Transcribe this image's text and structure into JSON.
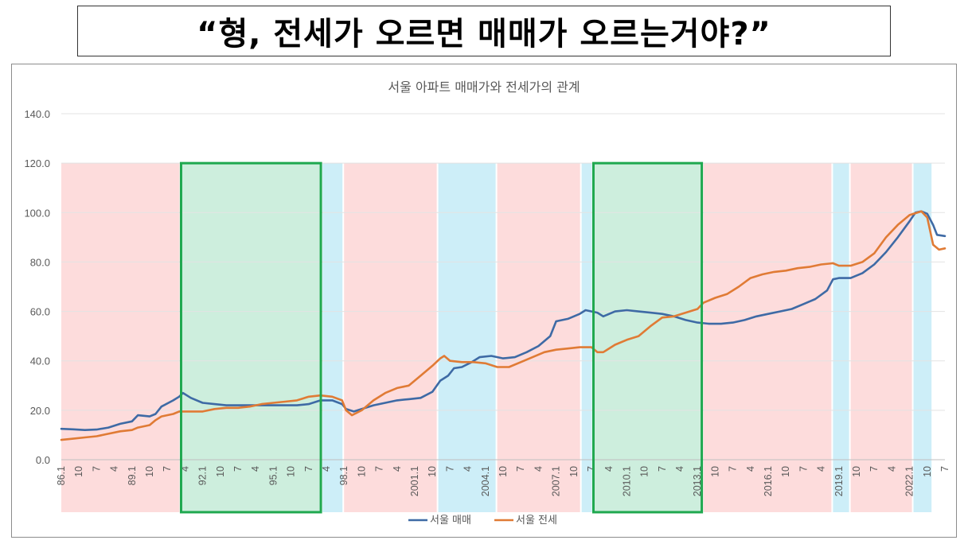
{
  "headline": "“형, 전세가 오르면 매매가 오르는거야?”",
  "chart_data": {
    "type": "line",
    "title": "서울 아파트 매매가와 전세가의 관계",
    "xlabel": "",
    "ylabel": "",
    "ylim": [
      0,
      140
    ],
    "yticks": [
      "0.0",
      "20.0",
      "40.0",
      "60.0",
      "80.0",
      "100.0",
      "120.0",
      "140.0"
    ],
    "x_start": "1986.1",
    "x_end": "2023.7",
    "x_tick_labels": [
      "86.1",
      "10",
      "7",
      "4",
      "89.1",
      "10",
      "7",
      "4",
      "92.1",
      "10",
      "7",
      "4",
      "95.1",
      "10",
      "7",
      "4",
      "98.1",
      "10",
      "7",
      "4",
      "2001.1",
      "10",
      "7",
      "4",
      "2004.1",
      "10",
      "7",
      "4",
      "2007.1",
      "10",
      "7",
      "4",
      "2010.1",
      "10",
      "7",
      "4",
      "2013.1",
      "10",
      "7",
      "4",
      "2016.1",
      "10",
      "7",
      "4",
      "2019.1",
      "10",
      "7",
      "4",
      "2022.1",
      "10",
      "7"
    ],
    "legend_position": "bottom",
    "colors": {
      "sale": "#3e6aa5",
      "jeonse": "#e07b35",
      "pink": "#fddcdc",
      "blue": "#cdeef8",
      "green_fill": "#cdeedd",
      "green_border": "#1fa84f"
    },
    "regions": [
      {
        "from": "1986.1",
        "to": "1991.2",
        "color": "pink"
      },
      {
        "from": "1991.2",
        "to": "1997.2",
        "color": "green"
      },
      {
        "from": "1997.2",
        "to": "1998.1",
        "color": "blue"
      },
      {
        "from": "1998.1",
        "to": "2002.1",
        "color": "pink"
      },
      {
        "from": "2002.1",
        "to": "2004.7",
        "color": "blue"
      },
      {
        "from": "2004.7",
        "to": "2008.2",
        "color": "pink"
      },
      {
        "from": "2008.2",
        "to": "2008.8",
        "color": "blue"
      },
      {
        "from": "2008.8",
        "to": "2013.4",
        "color": "green"
      },
      {
        "from": "2013.4",
        "to": "2018.10",
        "color": "pink"
      },
      {
        "from": "2018.10",
        "to": "2019.7",
        "color": "blue"
      },
      {
        "from": "2019.7",
        "to": "2022.3",
        "color": "pink"
      },
      {
        "from": "2022.3",
        "to": "2023.1",
        "color": "blue"
      }
    ],
    "series": [
      {
        "name": "서울 매매",
        "color": "#3e6aa5",
        "points": [
          [
            "1986.1",
            12.5
          ],
          [
            "1986.7",
            12.3
          ],
          [
            "1987.1",
            12.0
          ],
          [
            "1987.7",
            12.2
          ],
          [
            "1988.1",
            13.0
          ],
          [
            "1988.7",
            14.5
          ],
          [
            "1989.1",
            15.5
          ],
          [
            "1989.4",
            18.0
          ],
          [
            "1989.10",
            17.5
          ],
          [
            "1990.1",
            18.5
          ],
          [
            "1990.4",
            21.5
          ],
          [
            "1990.10",
            24.0
          ],
          [
            "1991.1",
            25.5
          ],
          [
            "1991.3",
            27.0
          ],
          [
            "1991.7",
            25.0
          ],
          [
            "1992.1",
            23.0
          ],
          [
            "1992.7",
            22.5
          ],
          [
            "1993.1",
            22.0
          ],
          [
            "1993.7",
            22.0
          ],
          [
            "1994.1",
            22.0
          ],
          [
            "1994.7",
            22.0
          ],
          [
            "1995.1",
            22.0
          ],
          [
            "1995.7",
            22.0
          ],
          [
            "1996.1",
            22.0
          ],
          [
            "1996.7",
            22.5
          ],
          [
            "1997.1",
            24.0
          ],
          [
            "1997.7",
            24.0
          ],
          [
            "1997.12",
            22.5
          ],
          [
            "1998.2",
            20.5
          ],
          [
            "1998.6",
            19.5
          ],
          [
            "1998.10",
            20.5
          ],
          [
            "1999.4",
            22.0
          ],
          [
            "1999.10",
            23.0
          ],
          [
            "2000.4",
            24.0
          ],
          [
            "2000.10",
            24.5
          ],
          [
            "2001.4",
            25.0
          ],
          [
            "2001.10",
            27.5
          ],
          [
            "2002.2",
            32.0
          ],
          [
            "2002.6",
            34.0
          ],
          [
            "2002.9",
            37.0
          ],
          [
            "2003.1",
            37.5
          ],
          [
            "2003.6",
            39.5
          ],
          [
            "2003.10",
            41.5
          ],
          [
            "2004.4",
            42.0
          ],
          [
            "2004.10",
            41.0
          ],
          [
            "2005.4",
            41.5
          ],
          [
            "2005.10",
            43.5
          ],
          [
            "2006.4",
            46.0
          ],
          [
            "2006.10",
            50.0
          ],
          [
            "2007.1",
            56.0
          ],
          [
            "2007.7",
            57.0
          ],
          [
            "2008.1",
            59.0
          ],
          [
            "2008.4",
            60.5
          ],
          [
            "2008.10",
            59.5
          ],
          [
            "2009.1",
            58.0
          ],
          [
            "2009.7",
            60.0
          ],
          [
            "2010.1",
            60.5
          ],
          [
            "2010.7",
            60.0
          ],
          [
            "2011.1",
            59.5
          ],
          [
            "2011.7",
            59.0
          ],
          [
            "2012.1",
            58.0
          ],
          [
            "2012.7",
            56.5
          ],
          [
            "2013.1",
            55.5
          ],
          [
            "2013.7",
            55.0
          ],
          [
            "2014.1",
            55.0
          ],
          [
            "2014.7",
            55.5
          ],
          [
            "2015.1",
            56.5
          ],
          [
            "2015.7",
            58.0
          ],
          [
            "2016.1",
            59.0
          ],
          [
            "2016.7",
            60.0
          ],
          [
            "2017.1",
            61.0
          ],
          [
            "2017.7",
            63.0
          ],
          [
            "2018.1",
            65.0
          ],
          [
            "2018.7",
            68.5
          ],
          [
            "2018.10",
            73.0
          ],
          [
            "2019.1",
            73.5
          ],
          [
            "2019.7",
            73.5
          ],
          [
            "2020.1",
            75.5
          ],
          [
            "2020.7",
            79.0
          ],
          [
            "2021.1",
            84.0
          ],
          [
            "2021.7",
            90.0
          ],
          [
            "2022.1",
            96.5
          ],
          [
            "2022.4",
            100.0
          ],
          [
            "2022.7",
            100.5
          ],
          [
            "2022.10",
            99.5
          ],
          [
            "2023.1",
            95.0
          ],
          [
            "2023.3",
            91.0
          ],
          [
            "2023.7",
            90.5
          ]
        ]
      },
      {
        "name": "서울 전세",
        "color": "#e07b35",
        "points": [
          [
            "1986.1",
            8.0
          ],
          [
            "1986.7",
            8.5
          ],
          [
            "1987.1",
            9.0
          ],
          [
            "1987.7",
            9.5
          ],
          [
            "1988.1",
            10.5
          ],
          [
            "1988.7",
            11.5
          ],
          [
            "1989.1",
            12.0
          ],
          [
            "1989.4",
            13.0
          ],
          [
            "1989.10",
            14.0
          ],
          [
            "1990.1",
            16.0
          ],
          [
            "1990.4",
            17.5
          ],
          [
            "1990.10",
            18.5
          ],
          [
            "1991.1",
            19.5
          ],
          [
            "1991.7",
            19.5
          ],
          [
            "1992.1",
            19.5
          ],
          [
            "1992.7",
            20.5
          ],
          [
            "1993.1",
            21.0
          ],
          [
            "1993.7",
            21.0
          ],
          [
            "1994.1",
            21.5
          ],
          [
            "1994.7",
            22.5
          ],
          [
            "1995.1",
            23.0
          ],
          [
            "1995.7",
            23.5
          ],
          [
            "1996.1",
            24.0
          ],
          [
            "1996.7",
            25.5
          ],
          [
            "1997.1",
            26.0
          ],
          [
            "1997.7",
            25.5
          ],
          [
            "1997.12",
            24.0
          ],
          [
            "1998.2",
            20.0
          ],
          [
            "1998.5",
            18.0
          ],
          [
            "1998.10",
            20.0
          ],
          [
            "1999.4",
            24.0
          ],
          [
            "1999.10",
            27.0
          ],
          [
            "2000.4",
            29.0
          ],
          [
            "2000.10",
            30.0
          ],
          [
            "2001.4",
            34.0
          ],
          [
            "2001.10",
            38.0
          ],
          [
            "2002.2",
            41.0
          ],
          [
            "2002.4",
            42.0
          ],
          [
            "2002.7",
            40.0
          ],
          [
            "2003.1",
            39.5
          ],
          [
            "2003.7",
            39.5
          ],
          [
            "2004.1",
            39.0
          ],
          [
            "2004.7",
            37.5
          ],
          [
            "2005.1",
            37.5
          ],
          [
            "2005.7",
            39.5
          ],
          [
            "2006.1",
            41.5
          ],
          [
            "2006.7",
            43.5
          ],
          [
            "2007.1",
            44.5
          ],
          [
            "2007.7",
            45.0
          ],
          [
            "2008.1",
            45.5
          ],
          [
            "2008.7",
            45.5
          ],
          [
            "2008.10",
            43.5
          ],
          [
            "2009.1",
            43.5
          ],
          [
            "2009.7",
            46.5
          ],
          [
            "2010.1",
            48.5
          ],
          [
            "2010.7",
            50.0
          ],
          [
            "2011.1",
            54.0
          ],
          [
            "2011.7",
            57.5
          ],
          [
            "2012.1",
            58.0
          ],
          [
            "2012.7",
            59.5
          ],
          [
            "2013.1",
            61.0
          ],
          [
            "2013.4",
            63.5
          ],
          [
            "2013.10",
            65.5
          ],
          [
            "2014.4",
            67.0
          ],
          [
            "2014.10",
            70.0
          ],
          [
            "2015.4",
            73.5
          ],
          [
            "2015.10",
            75.0
          ],
          [
            "2016.4",
            76.0
          ],
          [
            "2016.10",
            76.5
          ],
          [
            "2017.4",
            77.5
          ],
          [
            "2017.10",
            78.0
          ],
          [
            "2018.4",
            79.0
          ],
          [
            "2018.10",
            79.5
          ],
          [
            "2019.1",
            78.5
          ],
          [
            "2019.7",
            78.5
          ],
          [
            "2020.1",
            80.0
          ],
          [
            "2020.7",
            83.5
          ],
          [
            "2021.1",
            90.0
          ],
          [
            "2021.7",
            95.0
          ],
          [
            "2022.1",
            99.0
          ],
          [
            "2022.7",
            100.5
          ],
          [
            "2022.10",
            98.0
          ],
          [
            "2023.1",
            87.0
          ],
          [
            "2023.4",
            85.0
          ],
          [
            "2023.7",
            85.5
          ]
        ]
      }
    ]
  }
}
